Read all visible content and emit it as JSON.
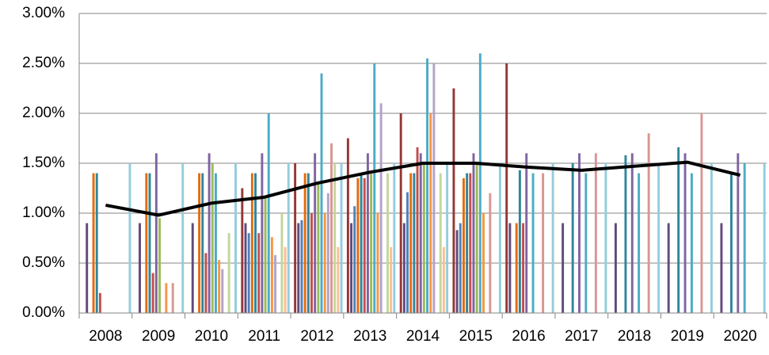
{
  "chart_data": {
    "type": "bar",
    "categories": [
      "2008",
      "2009",
      "2010",
      "2011",
      "2012",
      "2013",
      "2014",
      "2015",
      "2016",
      "2017",
      "2018",
      "2019",
      "2020"
    ],
    "ylim": [
      0,
      3
    ],
    "yticks": [
      {
        "value": 0,
        "label": "0.00%"
      },
      {
        "value": 0.5,
        "label": "0.50%"
      },
      {
        "value": 1,
        "label": "1.00%"
      },
      {
        "value": 1.5,
        "label": "1.50%"
      },
      {
        "value": 2,
        "label": "2.00%"
      },
      {
        "value": 2.5,
        "label": "2.50%"
      },
      {
        "value": 3,
        "label": "3.00%"
      }
    ],
    "grid": true,
    "series": [
      {
        "color": "#953735",
        "values": [
          null,
          null,
          null,
          1.25,
          1.5,
          1.75,
          2.0,
          2.25,
          2.5,
          null,
          null,
          null,
          null
        ]
      },
      {
        "color": "#604a7b",
        "values": [
          0.9,
          0.9,
          0.9,
          0.9,
          0.9,
          0.9,
          0.9,
          0.83,
          0.9,
          0.9,
          0.9,
          0.9,
          0.9
        ]
      },
      {
        "color": "#4f81bd",
        "values": [
          null,
          null,
          null,
          0.8,
          0.93,
          1.07,
          1.21,
          0.9,
          null,
          null,
          null,
          null,
          null
        ]
      },
      {
        "color": "#e46c0a",
        "values": [
          1.4,
          1.4,
          1.4,
          1.4,
          1.4,
          1.35,
          1.4,
          1.35,
          0.9,
          null,
          null,
          null,
          null
        ]
      },
      {
        "color": "#31859c",
        "values": [
          1.4,
          1.4,
          1.4,
          1.4,
          1.4,
          1.4,
          1.4,
          1.4,
          1.43,
          1.5,
          1.58,
          1.66,
          1.4
        ]
      },
      {
        "color": "#c0504d",
        "values": [
          0.2,
          0.4,
          0.6,
          0.8,
          1.0,
          1.35,
          1.66,
          1.4,
          0.9,
          null,
          null,
          null,
          null
        ]
      },
      {
        "color": "#8064a2",
        "values": [
          null,
          1.6,
          1.6,
          1.6,
          1.6,
          1.6,
          1.6,
          1.6,
          1.6,
          1.6,
          1.6,
          1.6,
          1.6
        ]
      },
      {
        "color": "#9bbb59",
        "values": [
          null,
          0.95,
          1.5,
          1.15,
          1.3,
          1.4,
          1.5,
          1.5,
          null,
          null,
          null,
          null,
          null
        ]
      },
      {
        "color": "#4bacc6",
        "values": [
          null,
          null,
          1.4,
          2.0,
          2.4,
          2.5,
          2.55,
          2.6,
          1.4,
          1.4,
          1.4,
          1.4,
          1.5
        ]
      },
      {
        "color": "#f79646",
        "values": [
          null,
          0.3,
          0.53,
          0.76,
          1.0,
          1.0,
          2.0,
          1.0,
          null,
          null,
          null,
          null,
          null
        ]
      },
      {
        "color": "#b3a2c7",
        "values": [
          null,
          null,
          0.44,
          0.58,
          1.2,
          2.1,
          2.5,
          null,
          null,
          null,
          null,
          null,
          null
        ]
      },
      {
        "color": "#d99694",
        "values": [
          null,
          0.3,
          null,
          null,
          1.7,
          null,
          null,
          1.2,
          1.4,
          1.6,
          1.8,
          2.0,
          null
        ]
      },
      {
        "color": "#c3d69b",
        "values": [
          null,
          null,
          0.8,
          1.0,
          1.5,
          1.4,
          1.4,
          null,
          null,
          null,
          null,
          null,
          null
        ]
      },
      {
        "color": "#fac090",
        "values": [
          null,
          null,
          null,
          0.66,
          0.66,
          0.66,
          0.66,
          null,
          null,
          null,
          null,
          null,
          null
        ]
      },
      {
        "color": "#93cddd",
        "values": [
          1.5,
          1.5,
          1.5,
          1.5,
          1.5,
          1.5,
          1.5,
          1.5,
          1.5,
          1.5,
          1.5,
          1.5,
          1.5
        ]
      },
      {
        "type": "line",
        "color": "#000000",
        "values": [
          1.08,
          0.98,
          1.1,
          1.16,
          1.3,
          1.41,
          1.5,
          1.5,
          1.46,
          1.43,
          1.47,
          1.51,
          1.38
        ]
      }
    ]
  }
}
